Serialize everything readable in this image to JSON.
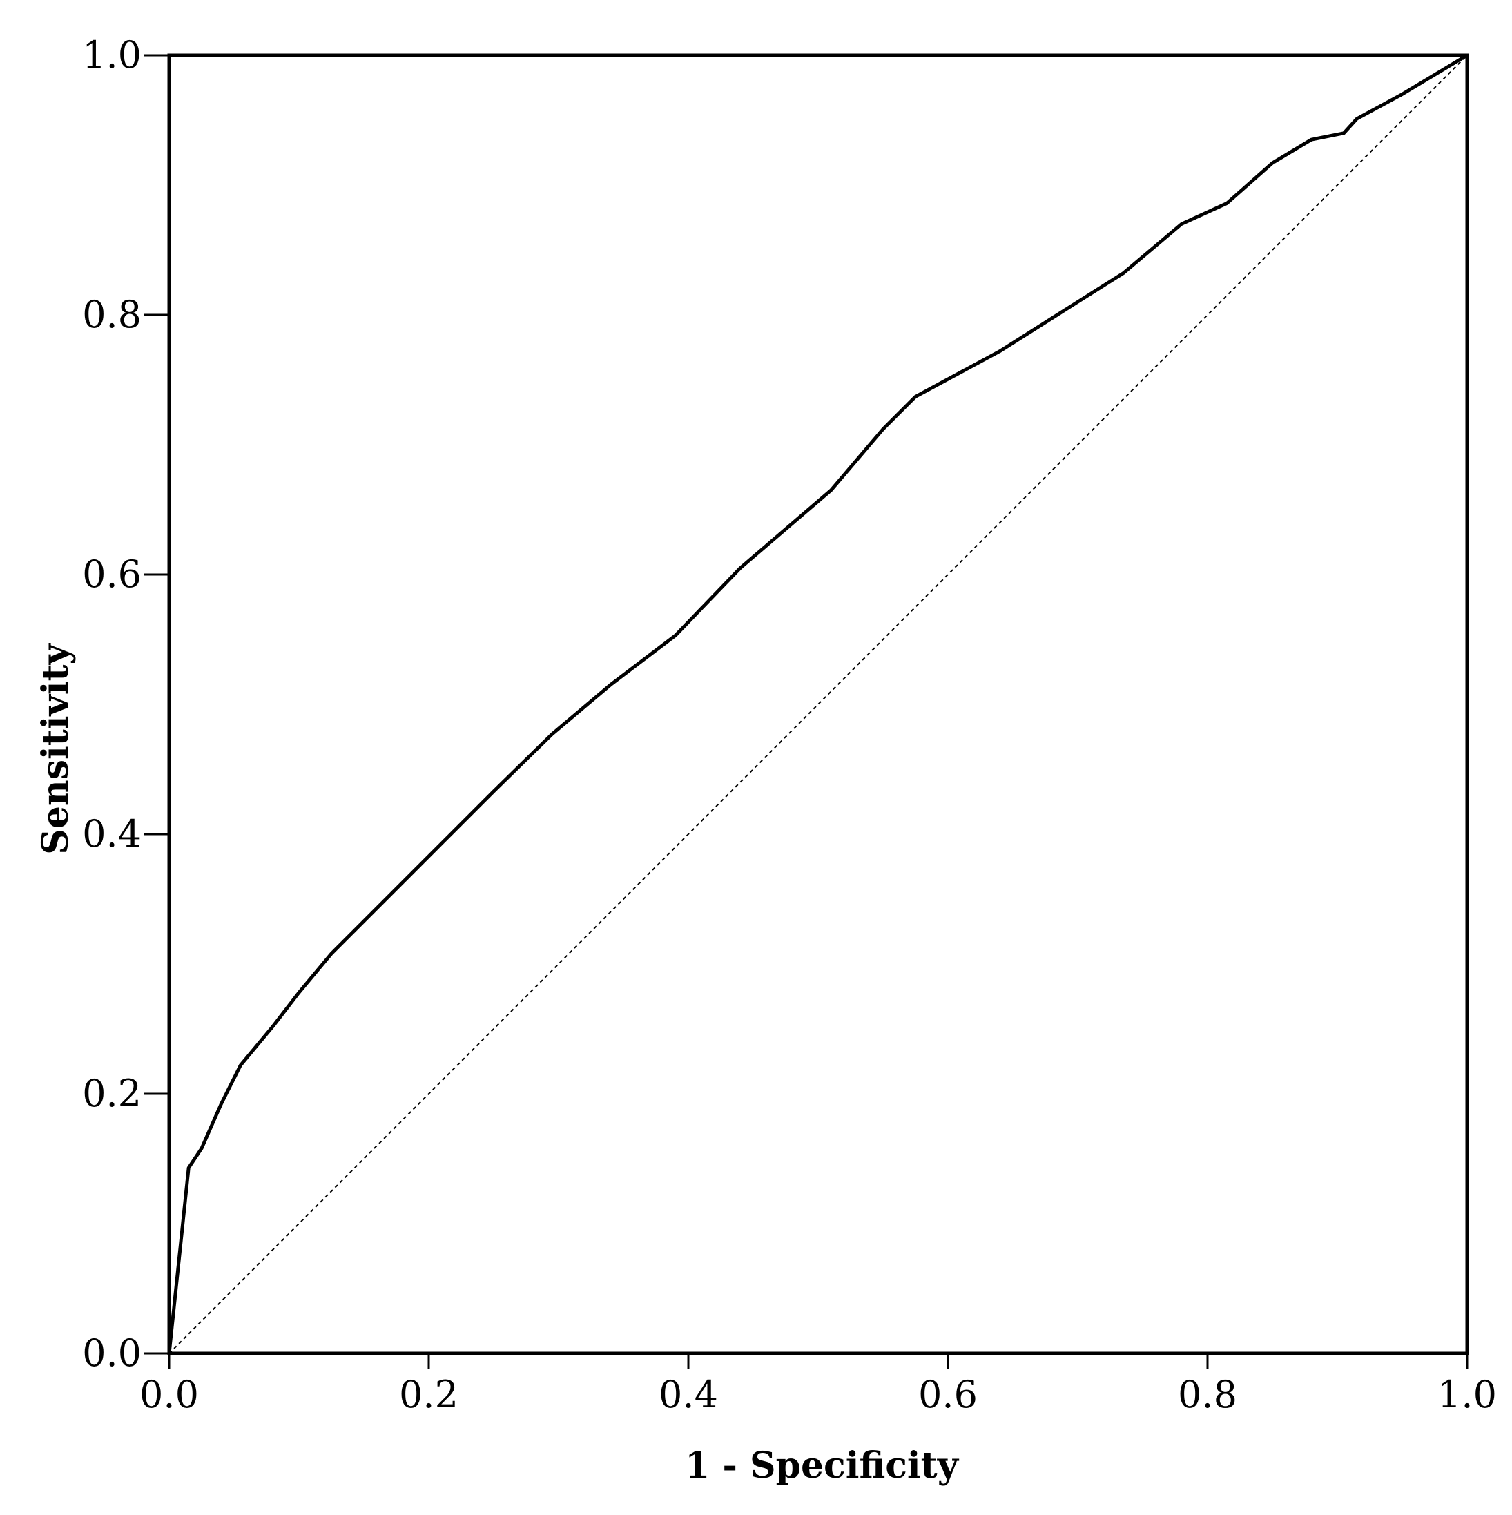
{
  "chart_data": {
    "type": "line",
    "title": "",
    "xlabel": "1 - Specificity",
    "ylabel": "Sensitivity",
    "xlim": [
      0,
      1
    ],
    "ylim": [
      0,
      1
    ],
    "xticks": [
      "0.0",
      "0.2",
      "0.4",
      "0.6",
      "0.8",
      "1.0"
    ],
    "yticks": [
      "0.0",
      "0.2",
      "0.4",
      "0.6",
      "0.8",
      "1.0"
    ],
    "grid": false,
    "series": [
      {
        "style": "solid",
        "color": "#000000",
        "x": [
          0,
          0.015,
          0.025,
          0.04,
          0.055,
          0.08,
          0.1,
          0.125,
          0.15,
          0.2,
          0.25,
          0.295,
          0.34,
          0.39,
          0.44,
          0.51,
          0.55,
          0.575,
          0.64,
          0.7,
          0.735,
          0.78,
          0.815,
          0.85,
          0.88,
          0.905,
          0.915,
          0.95,
          1.0
        ],
        "y": [
          0,
          0.143,
          0.158,
          0.192,
          0.222,
          0.252,
          0.278,
          0.308,
          0.333,
          0.383,
          0.433,
          0.477,
          0.515,
          0.553,
          0.605,
          0.665,
          0.712,
          0.737,
          0.772,
          0.81,
          0.832,
          0.87,
          0.886,
          0.917,
          0.935,
          0.94,
          0.951,
          0.97,
          1.0
        ]
      },
      {
        "style": "dotted",
        "color": "#000000",
        "x": [
          0,
          1
        ],
        "y": [
          0,
          1
        ]
      }
    ]
  }
}
